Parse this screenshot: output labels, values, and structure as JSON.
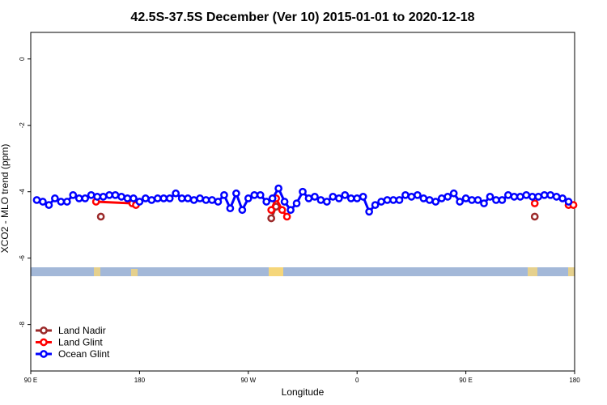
{
  "chart_data": {
    "type": "line",
    "title": "42.5S-37.5S December (Ver 10)   2015-01-01 to 2020-12-18",
    "x_label": "Longitude",
    "y_label": "XCO2 - MLO trend (ppm)",
    "xlim": [
      90,
      540
    ],
    "xticks": [
      {
        "value": 90,
        "label": "90 E"
      },
      {
        "value": 180,
        "label": "180"
      },
      {
        "value": 270,
        "label": "90 W"
      },
      {
        "value": 360,
        "label": "0"
      },
      {
        "value": 450,
        "label": "90 E"
      },
      {
        "value": 540,
        "label": "180"
      }
    ],
    "ylim": [
      -9.4,
      0.8
    ],
    "yticks": [
      0,
      -2,
      -4,
      -6,
      -8
    ],
    "legend": "bottom-left",
    "series": [
      {
        "name": "Land Nadir",
        "color": "#9b2a2a",
        "x": [
          148,
          null,
          289,
          293,
          null,
          507
        ],
        "values": [
          -4.75,
          null,
          -4.8,
          -4.45,
          null,
          -4.75
        ]
      },
      {
        "name": "Land Glint",
        "color": "#ff0000",
        "x": [
          144,
          174,
          177,
          null,
          289,
          293,
          298,
          302,
          null,
          507,
          null,
          535,
          539
        ],
        "values": [
          -4.3,
          -4.35,
          -4.4,
          null,
          -4.55,
          -4.2,
          -4.55,
          -4.75,
          null,
          -4.35,
          null,
          -4.4,
          -4.4
        ]
      },
      {
        "name": "Ocean Glint",
        "color": "#0000ff",
        "x": [
          95,
          100,
          105,
          110,
          115,
          120,
          125,
          130,
          135,
          140,
          145,
          150,
          155,
          160,
          165,
          170,
          175,
          180,
          185,
          190,
          195,
          200,
          205,
          210,
          215,
          220,
          225,
          230,
          235,
          240,
          245,
          250,
          255,
          260,
          265,
          270,
          275,
          280,
          285,
          290,
          295,
          300,
          305,
          310,
          315,
          320,
          325,
          330,
          335,
          340,
          345,
          350,
          355,
          360,
          365,
          370,
          375,
          380,
          385,
          390,
          395,
          400,
          405,
          410,
          415,
          420,
          425,
          430,
          435,
          440,
          445,
          450,
          455,
          460,
          465,
          470,
          475,
          480,
          485,
          490,
          495,
          500,
          505,
          510,
          515,
          520,
          525,
          530,
          535
        ],
        "values": [
          -4.25,
          -4.3,
          -4.4,
          -4.2,
          -4.3,
          -4.3,
          -4.1,
          -4.2,
          -4.2,
          -4.1,
          -4.15,
          -4.15,
          -4.1,
          -4.1,
          -4.15,
          -4.2,
          -4.2,
          -4.3,
          -4.2,
          -4.25,
          -4.2,
          -4.2,
          -4.2,
          -4.05,
          -4.2,
          -4.2,
          -4.25,
          -4.2,
          -4.25,
          -4.25,
          -4.3,
          -4.1,
          -4.5,
          -4.05,
          -4.55,
          -4.2,
          -4.1,
          -4.1,
          -4.3,
          -4.2,
          -3.9,
          -4.3,
          -4.55,
          -4.35,
          -4.0,
          -4.2,
          -4.15,
          -4.25,
          -4.3,
          -4.15,
          -4.2,
          -4.1,
          -4.2,
          -4.2,
          -4.15,
          -4.6,
          -4.4,
          -4.3,
          -4.25,
          -4.25,
          -4.25,
          -4.1,
          -4.15,
          -4.1,
          -4.2,
          -4.25,
          -4.3,
          -4.2,
          -4.15,
          -4.05,
          -4.3,
          -4.2,
          -4.25,
          -4.25,
          -4.35,
          -4.15,
          -4.25,
          -4.25,
          -4.1,
          -4.15,
          -4.15,
          -4.1,
          -4.15,
          -4.15,
          -4.1,
          -4.1,
          -4.15,
          -4.2,
          -4.3
        ]
      }
    ]
  }
}
